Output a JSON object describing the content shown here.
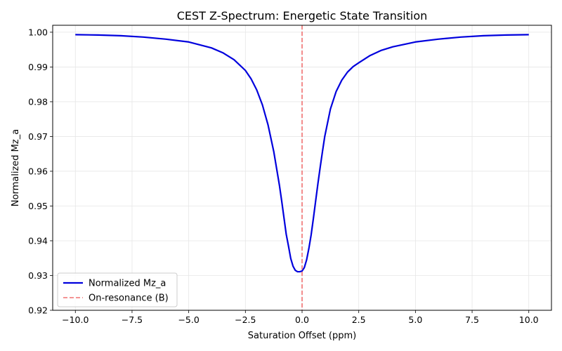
{
  "chart_data": {
    "type": "line",
    "title": "CEST Z-Spectrum: Energetic State Transition",
    "xlabel": "Saturation Offset (ppm)",
    "ylabel": "Normalized Mz_a",
    "xlim": [
      -11,
      11
    ],
    "ylim": [
      0.92,
      1.002
    ],
    "xticks": [
      -10.0,
      -7.5,
      -5.0,
      -2.5,
      0.0,
      2.5,
      5.0,
      7.5,
      10.0
    ],
    "xtick_labels": [
      "−10.0",
      "−7.5",
      "−5.0",
      "−2.5",
      "0.0",
      "2.5",
      "5.0",
      "7.5",
      "10.0"
    ],
    "yticks": [
      0.92,
      0.93,
      0.94,
      0.95,
      0.96,
      0.97,
      0.98,
      0.99,
      1.0
    ],
    "ytick_labels": [
      "0.92",
      "0.93",
      "0.94",
      "0.95",
      "0.96",
      "0.97",
      "0.98",
      "0.99",
      "1.00"
    ],
    "grid": true,
    "legend_position": "lower-left",
    "series": [
      {
        "name": "Normalized Mz_a",
        "color": "#0000dd",
        "style": "solid",
        "x": [
          -10,
          -9,
          -8,
          -7,
          -6,
          -5,
          -4,
          -3.5,
          -3,
          -2.5,
          -2.25,
          -2,
          -1.75,
          -1.5,
          -1.25,
          -1,
          -0.9,
          -0.8,
          -0.7,
          -0.6,
          -0.5,
          -0.4,
          -0.3,
          -0.2,
          -0.1,
          0,
          0.1,
          0.2,
          0.3,
          0.4,
          0.5,
          0.6,
          0.7,
          0.8,
          0.9,
          1,
          1.25,
          1.5,
          1.75,
          2,
          2.25,
          2.5,
          3,
          3.5,
          4,
          5,
          6,
          7,
          8,
          9,
          10
        ],
        "y": [
          0.9993,
          0.9992,
          0.999,
          0.9986,
          0.998,
          0.9972,
          0.9955,
          0.9941,
          0.9921,
          0.989,
          0.9866,
          0.9834,
          0.9791,
          0.9733,
          0.9657,
          0.956,
          0.9515,
          0.9467,
          0.9419,
          0.9385,
          0.9349,
          0.9327,
          0.9315,
          0.9311,
          0.9311,
          0.9313,
          0.9323,
          0.9345,
          0.9378,
          0.9417,
          0.9465,
          0.9515,
          0.9565,
          0.9612,
          0.9657,
          0.97,
          0.9779,
          0.9829,
          0.9862,
          0.9885,
          0.9901,
          0.9912,
          0.9933,
          0.9948,
          0.9958,
          0.9972,
          0.998,
          0.9986,
          0.999,
          0.9992,
          0.9993
        ]
      },
      {
        "name": "On-resonance (B)",
        "color": "#f07070",
        "style": "dashed",
        "vline_x": 0
      }
    ]
  }
}
